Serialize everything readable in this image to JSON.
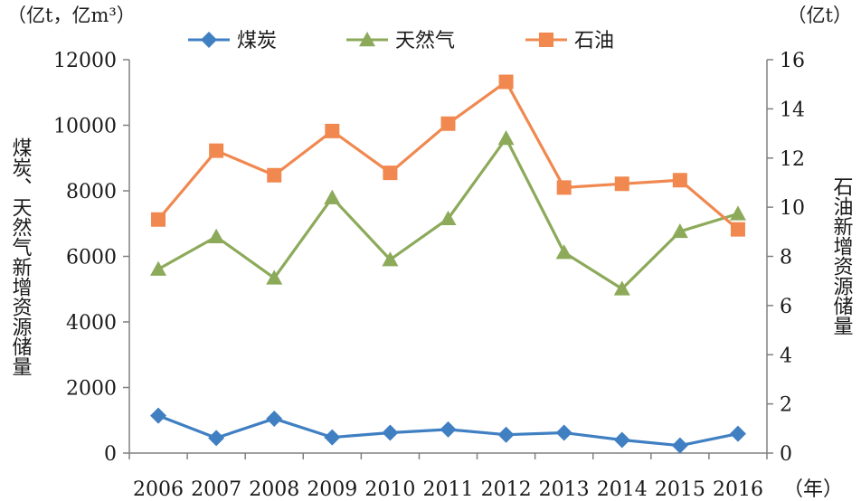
{
  "chart_data": {
    "type": "line",
    "categories": [
      "2006",
      "2007",
      "2008",
      "2009",
      "2010",
      "2011",
      "2012",
      "2013",
      "2014",
      "2015",
      "2016"
    ],
    "x_unit": "（年）",
    "left_axis": {
      "label": "煤炭、天然气新增资源储量",
      "unit": "（亿t，亿m³）",
      "range": [
        0,
        12000
      ],
      "ticks": [
        0,
        2000,
        4000,
        6000,
        8000,
        10000,
        12000
      ]
    },
    "right_axis": {
      "label": "石油新增资源储量",
      "unit": "（亿t）",
      "range": [
        0,
        16
      ],
      "ticks": [
        0,
        2,
        4,
        6,
        8,
        10,
        12,
        14,
        16
      ]
    },
    "legend_position": "top",
    "grid": false,
    "series": [
      {
        "name": "煤炭",
        "axis": "left",
        "marker": "diamond",
        "color": "#3f7fc2",
        "values": [
          1140,
          460,
          1050,
          480,
          620,
          720,
          560,
          620,
          400,
          230,
          590
        ]
      },
      {
        "name": "天然气",
        "axis": "left",
        "marker": "triangle",
        "color": "#8caa5a",
        "values": [
          5610,
          6600,
          5340,
          7790,
          5900,
          7150,
          9600,
          6120,
          5010,
          6760,
          7300
        ]
      },
      {
        "name": "石油",
        "axis": "right",
        "marker": "square",
        "color": "#f0884f",
        "values": [
          9.5,
          12.3,
          11.3,
          13.1,
          11.4,
          13.4,
          15.1,
          10.8,
          10.95,
          11.1,
          9.1
        ]
      }
    ]
  }
}
